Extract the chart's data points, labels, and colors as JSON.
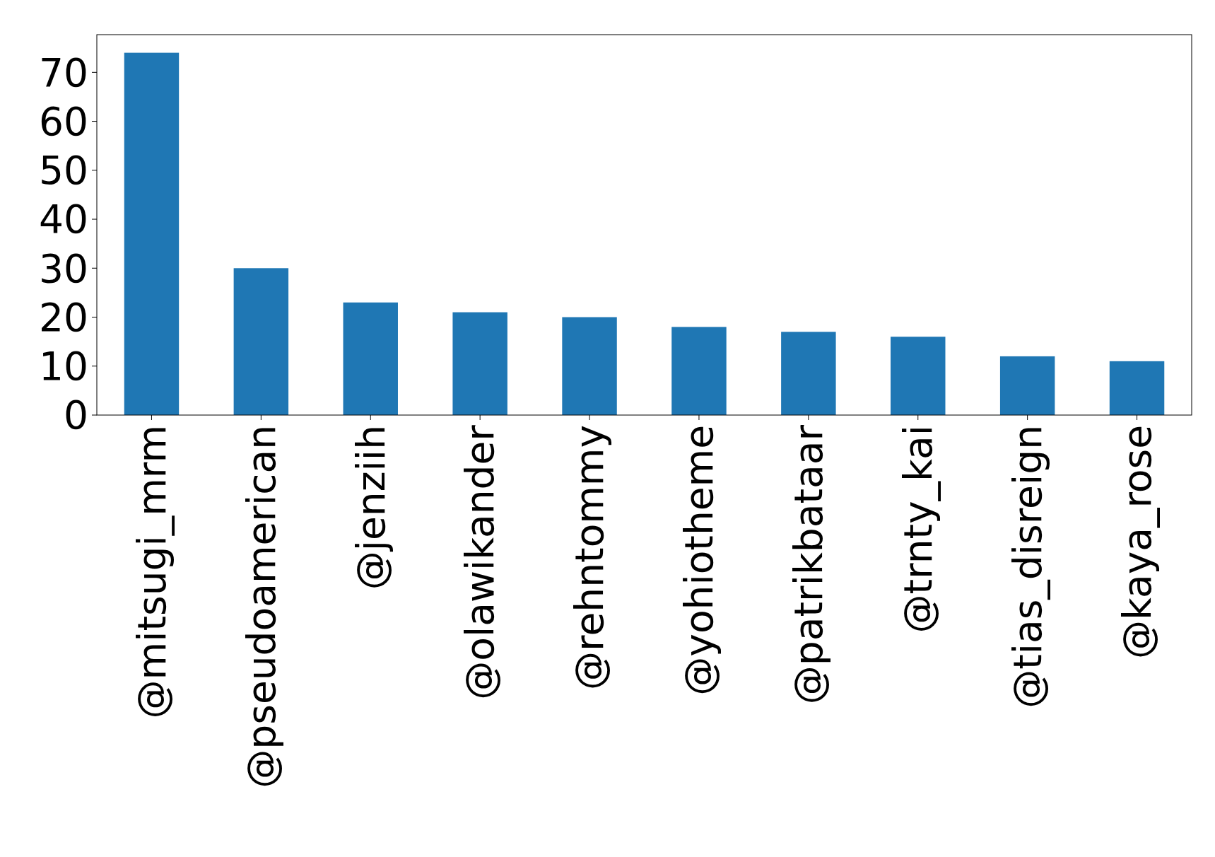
{
  "chart_data": {
    "type": "bar",
    "categories": [
      "@mitsugi_mrm",
      "@pseudoamerican",
      "@jenziih",
      "@olawikander",
      "@rehntommy",
      "@yohiotheme",
      "@patrikbataar",
      "@trnty_kai",
      "@tias_disreign",
      "@kaya_rose"
    ],
    "values": [
      74,
      30,
      23,
      21,
      20,
      18,
      17,
      16,
      12,
      11
    ],
    "color": "#1f77b4",
    "ylim": [
      0,
      77.7
    ],
    "yticks": [
      0,
      10,
      20,
      30,
      40,
      50,
      60,
      70
    ]
  }
}
